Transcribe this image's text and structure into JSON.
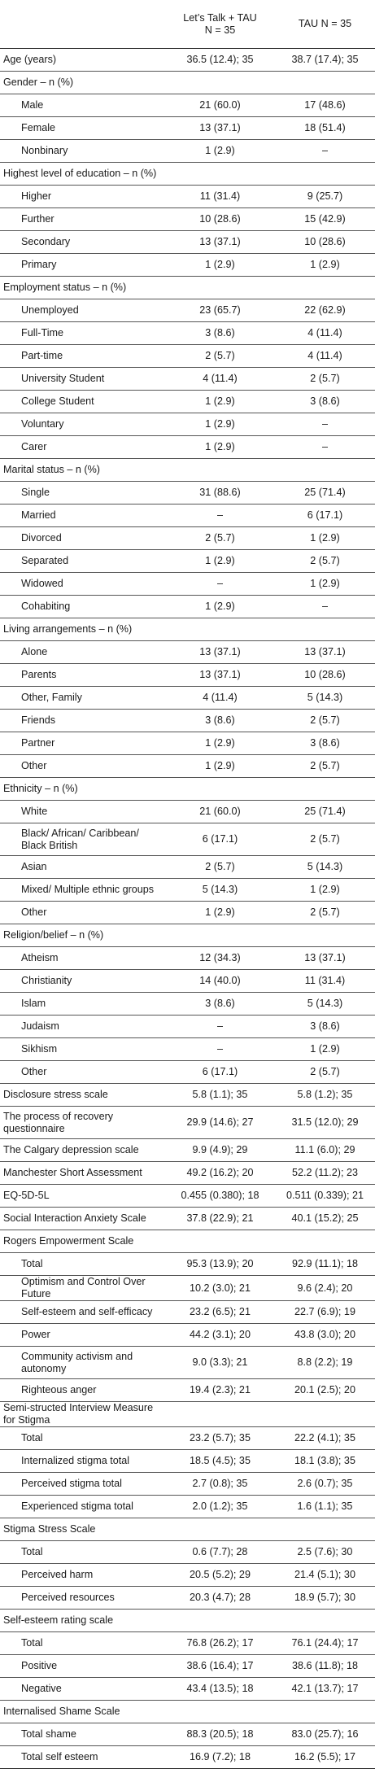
{
  "header": {
    "group1_line1": "Let’s Talk + TAU",
    "group1_line2": "N = 35",
    "group2": "TAU N = 35"
  },
  "rows": [
    {
      "label": "Age (years)",
      "g1": "36.5 (12.4); 35",
      "g2": "38.7 (17.4); 35",
      "indent": false
    },
    {
      "label": "Gender – n (%)",
      "g1": "",
      "g2": "",
      "indent": false
    },
    {
      "label": "Male",
      "g1": "21 (60.0)",
      "g2": "17 (48.6)",
      "indent": true
    },
    {
      "label": "Female",
      "g1": "13 (37.1)",
      "g2": "18 (51.4)",
      "indent": true
    },
    {
      "label": "Nonbinary",
      "g1": "1 (2.9)",
      "g2": "–",
      "indent": true
    },
    {
      "label": "Highest level of education – n (%)",
      "g1": "",
      "g2": "",
      "indent": false
    },
    {
      "label": "Higher",
      "g1": "11 (31.4)",
      "g2": "9 (25.7)",
      "indent": true
    },
    {
      "label": "Further",
      "g1": "10 (28.6)",
      "g2": "15 (42.9)",
      "indent": true
    },
    {
      "label": "Secondary",
      "g1": "13 (37.1)",
      "g2": "10 (28.6)",
      "indent": true
    },
    {
      "label": "Primary",
      "g1": "1 (2.9)",
      "g2": "1 (2.9)",
      "indent": true
    },
    {
      "label": "Employment status – n (%)",
      "g1": "",
      "g2": "",
      "indent": false
    },
    {
      "label": "Unemployed",
      "g1": "23 (65.7)",
      "g2": "22 (62.9)",
      "indent": true
    },
    {
      "label": "Full-Time",
      "g1": "3 (8.6)",
      "g2": "4 (11.4)",
      "indent": true
    },
    {
      "label": "Part-time",
      "g1": "2 (5.7)",
      "g2": "4 (11.4)",
      "indent": true
    },
    {
      "label": "University Student",
      "g1": "4 (11.4)",
      "g2": "2 (5.7)",
      "indent": true
    },
    {
      "label": "College Student",
      "g1": "1 (2.9)",
      "g2": "3 (8.6)",
      "indent": true
    },
    {
      "label": "Voluntary",
      "g1": "1 (2.9)",
      "g2": "–",
      "indent": true
    },
    {
      "label": "Carer",
      "g1": "1 (2.9)",
      "g2": "–",
      "indent": true
    },
    {
      "label": "Marital status – n (%)",
      "g1": "",
      "g2": "",
      "indent": false
    },
    {
      "label": "Single",
      "g1": "31 (88.6)",
      "g2": "25 (71.4)",
      "indent": true
    },
    {
      "label": "Married",
      "g1": "–",
      "g2": "6 (17.1)",
      "indent": true
    },
    {
      "label": "Divorced",
      "g1": "2 (5.7)",
      "g2": "1 (2.9)",
      "indent": true
    },
    {
      "label": "Separated",
      "g1": "1 (2.9)",
      "g2": "2 (5.7)",
      "indent": true
    },
    {
      "label": "Widowed",
      "g1": "–",
      "g2": "1 (2.9)",
      "indent": true
    },
    {
      "label": "Cohabiting",
      "g1": "1 (2.9)",
      "g2": "–",
      "indent": true
    },
    {
      "label": "Living arrangements – n (%)",
      "g1": "",
      "g2": "",
      "indent": false
    },
    {
      "label": "Alone",
      "g1": "13 (37.1)",
      "g2": "13 (37.1)",
      "indent": true
    },
    {
      "label": "Parents",
      "g1": "13 (37.1)",
      "g2": "10 (28.6)",
      "indent": true
    },
    {
      "label": "Other, Family",
      "g1": "4 (11.4)",
      "g2": "5 (14.3)",
      "indent": true
    },
    {
      "label": "Friends",
      "g1": "3 (8.6)",
      "g2": "2 (5.7)",
      "indent": true
    },
    {
      "label": "Partner",
      "g1": "1 (2.9)",
      "g2": "3 (8.6)",
      "indent": true
    },
    {
      "label": "Other",
      "g1": "1 (2.9)",
      "g2": "2 (5.7)",
      "indent": true
    },
    {
      "label": "Ethnicity – n (%)",
      "g1": "",
      "g2": "",
      "indent": false
    },
    {
      "label": "White",
      "g1": "21 (60.0)",
      "g2": "25 (71.4)",
      "indent": true
    },
    {
      "label": "Black/ African/ Caribbean/ Black British",
      "g1": "6 (17.1)",
      "g2": "2 (5.7)",
      "indent": true,
      "tall": true
    },
    {
      "label": "Asian",
      "g1": "2 (5.7)",
      "g2": "5 (14.3)",
      "indent": true
    },
    {
      "label": "Mixed/ Multiple ethnic groups",
      "g1": "5 (14.3)",
      "g2": "1 (2.9)",
      "indent": true
    },
    {
      "label": "Other",
      "g1": "1 (2.9)",
      "g2": "2 (5.7)",
      "indent": true
    },
    {
      "label": "Religion/belief – n (%)",
      "g1": "",
      "g2": "",
      "indent": false
    },
    {
      "label": "Atheism",
      "g1": "12 (34.3)",
      "g2": "13 (37.1)",
      "indent": true
    },
    {
      "label": "Christianity",
      "g1": "14 (40.0)",
      "g2": "11 (31.4)",
      "indent": true
    },
    {
      "label": "Islam",
      "g1": "3 (8.6)",
      "g2": "5 (14.3)",
      "indent": true
    },
    {
      "label": "Judaism",
      "g1": "–",
      "g2": "3 (8.6)",
      "indent": true
    },
    {
      "label": "Sikhism",
      "g1": "–",
      "g2": "1 (2.9)",
      "indent": true
    },
    {
      "label": "Other",
      "g1": "6 (17.1)",
      "g2": "2 (5.7)",
      "indent": true
    },
    {
      "label": "Disclosure stress scale",
      "g1": "5.8 (1.1); 35",
      "g2": "5.8 (1.2); 35",
      "indent": false
    },
    {
      "label": "The process of recovery questionnaire",
      "g1": "29.9 (14.6); 27",
      "g2": "31.5 (12.0); 29",
      "indent": false,
      "tall": true
    },
    {
      "label": "The Calgary depression scale",
      "g1": "9.9 (4.9); 29",
      "g2": "11.1 (6.0); 29",
      "indent": false
    },
    {
      "label": "Manchester Short Assessment",
      "g1": "49.2 (16.2); 20",
      "g2": "52.2 (11.2); 23",
      "indent": false
    },
    {
      "label": "EQ-5D-5L",
      "g1": "0.455 (0.380); 18",
      "g2": "0.511 (0.339); 21",
      "indent": false
    },
    {
      "label": "Social Interaction Anxiety Scale",
      "g1": "37.8 (22.9); 21",
      "g2": "40.1 (15.2); 25",
      "indent": false
    },
    {
      "label": "Rogers Empowerment Scale",
      "g1": "",
      "g2": "",
      "indent": false
    },
    {
      "label": "Total",
      "g1": "95.3 (13.9); 20",
      "g2": "92.9 (11.1); 18",
      "indent": true
    },
    {
      "label": "Optimism and Control Over Future",
      "g1": "10.2 (3.0); 21",
      "g2": "9.6 (2.4); 20",
      "indent": true
    },
    {
      "label": "Self-esteem and self-efficacy",
      "g1": "23.2 (6.5); 21",
      "g2": "22.7 (6.9); 19",
      "indent": true
    },
    {
      "label": "Power",
      "g1": "44.2 (3.1); 20",
      "g2": "43.8 (3.0); 20",
      "indent": true
    },
    {
      "label": "Community activism and autonomy",
      "g1": "9.0 (3.3); 21",
      "g2": "8.8 (2.2); 19",
      "indent": true,
      "tall": true
    },
    {
      "label": "Righteous anger",
      "g1": "19.4 (2.3); 21",
      "g2": "20.1 (2.5); 20",
      "indent": true
    },
    {
      "label": "Semi-structed Interview Measure for Stigma",
      "g1": "",
      "g2": "",
      "indent": false
    },
    {
      "label": "Total",
      "g1": "23.2 (5.7); 35",
      "g2": "22.2 (4.1); 35",
      "indent": true
    },
    {
      "label": "Internalized stigma total",
      "g1": "18.5 (4.5); 35",
      "g2": "18.1 (3.8); 35",
      "indent": true
    },
    {
      "label": "Perceived stigma total",
      "g1": "2.7 (0.8); 35",
      "g2": "2.6 (0.7); 35",
      "indent": true
    },
    {
      "label": "Experienced stigma total",
      "g1": "2.0 (1.2); 35",
      "g2": "1.6 (1.1); 35",
      "indent": true
    },
    {
      "label": "Stigma Stress Scale",
      "g1": "",
      "g2": "",
      "indent": false
    },
    {
      "label": "Total",
      "g1": "0.6 (7.7); 28",
      "g2": "2.5 (7.6); 30",
      "indent": true
    },
    {
      "label": "Perceived harm",
      "g1": "20.5 (5.2); 29",
      "g2": "21.4 (5.1); 30",
      "indent": true
    },
    {
      "label": "Perceived resources",
      "g1": "20.3 (4.7); 28",
      "g2": "18.9 (5.7); 30",
      "indent": true
    },
    {
      "label": "Self-esteem rating scale",
      "g1": "",
      "g2": "",
      "indent": false
    },
    {
      "label": "Total",
      "g1": "76.8 (26.2); 17",
      "g2": "76.1 (24.4); 17",
      "indent": true
    },
    {
      "label": "Positive",
      "g1": "38.6 (16.4); 17",
      "g2": "38.6 (11.8); 18",
      "indent": true
    },
    {
      "label": "Negative",
      "g1": "43.4 (13.5); 18",
      "g2": "42.1 (13.7); 17",
      "indent": true
    },
    {
      "label": "Internalised Shame Scale",
      "g1": "",
      "g2": "",
      "indent": false
    },
    {
      "label": "Total shame",
      "g1": "88.3 (20.5); 18",
      "g2": "83.0 (25.7); 16",
      "indent": true
    },
    {
      "label": "Total self esteem",
      "g1": "16.9 (7.2); 18",
      "g2": "16.2 (5.5); 17",
      "indent": true
    }
  ]
}
